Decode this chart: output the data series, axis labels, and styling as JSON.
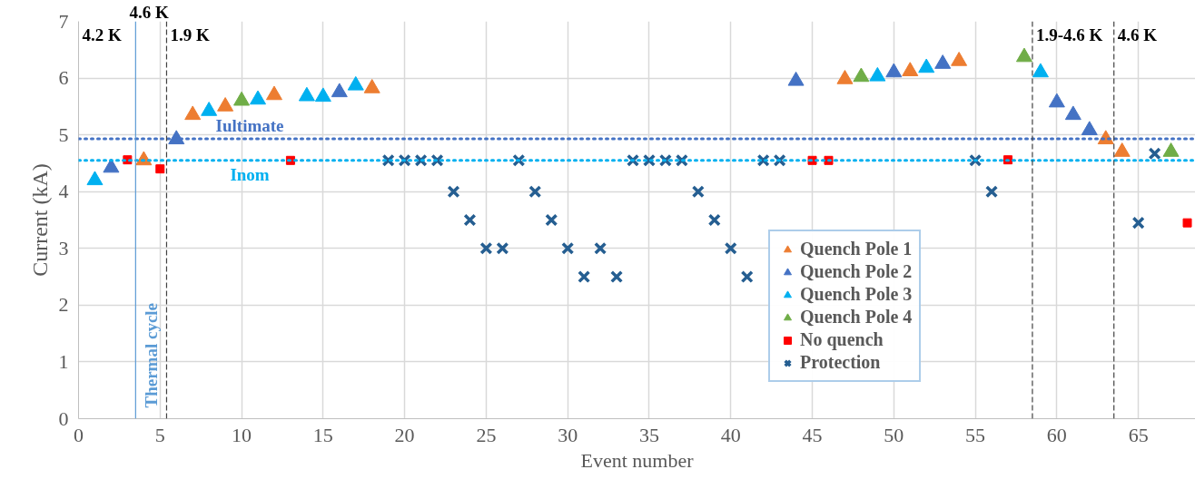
{
  "chart_data": {
    "type": "scatter",
    "xlabel": "Event number",
    "ylabel": "Current (kA)",
    "xlim": [
      0,
      68.5
    ],
    "ylim": [
      0,
      7
    ],
    "xticks": [
      0,
      5,
      10,
      15,
      20,
      25,
      30,
      35,
      40,
      45,
      50,
      55,
      60,
      65
    ],
    "yticks": [
      0,
      1,
      2,
      3,
      4,
      5,
      6,
      7
    ],
    "grid": true,
    "legend": "bottom right",
    "series": [
      {
        "name": "Quench Pole 1",
        "color": "#ed7d31",
        "marker": "triangle",
        "x": [
          4,
          7,
          9,
          12,
          18,
          47,
          51,
          54,
          63,
          64
        ],
        "values": [
          4.55,
          5.35,
          5.5,
          5.7,
          5.82,
          5.98,
          6.12,
          6.3,
          4.92,
          4.7
        ]
      },
      {
        "name": "Quench Pole 2",
        "color": "#4472c4",
        "marker": "triangle",
        "x": [
          2,
          6,
          16,
          44,
          50,
          53,
          60,
          61,
          62
        ],
        "values": [
          4.42,
          4.92,
          5.75,
          5.95,
          6.1,
          6.25,
          5.57,
          5.35,
          5.08
        ]
      },
      {
        "name": "Quench Pole 3",
        "color": "#00b0f0",
        "marker": "triangle",
        "x": [
          1,
          8,
          11,
          14,
          15,
          17,
          49,
          52,
          59
        ],
        "values": [
          4.2,
          5.42,
          5.62,
          5.68,
          5.67,
          5.87,
          6.03,
          6.18,
          6.1
        ]
      },
      {
        "name": "Quench Pole 4",
        "color": "#70ad47",
        "marker": "triangle",
        "x": [
          10,
          48,
          58,
          67
        ],
        "values": [
          5.6,
          6.02,
          6.37,
          4.7
        ]
      },
      {
        "name": "No quench",
        "color": "#ff0000",
        "marker": "square",
        "x": [
          3,
          5,
          13,
          45,
          46,
          57,
          68
        ],
        "values": [
          4.56,
          4.4,
          4.55,
          4.55,
          4.55,
          4.56,
          3.45
        ]
      },
      {
        "name": "Protection",
        "color": "#255e91",
        "marker": "cross",
        "x": [
          19,
          20,
          21,
          22,
          23,
          24,
          25,
          26,
          27,
          28,
          29,
          30,
          31,
          32,
          33,
          34,
          35,
          36,
          37,
          38,
          39,
          40,
          41,
          42,
          43,
          55,
          56,
          65,
          66
        ],
        "values": [
          4.55,
          4.55,
          4.55,
          4.55,
          4.0,
          3.5,
          3.0,
          3.0,
          4.55,
          4.0,
          3.5,
          3.0,
          2.5,
          3.0,
          2.5,
          4.55,
          4.55,
          4.55,
          4.55,
          4.0,
          3.5,
          3.0,
          2.5,
          4.55,
          4.55,
          4.55,
          4.0,
          3.45,
          4.67
        ]
      }
    ],
    "ref_lines": [
      {
        "axis": "y",
        "value": 4.93,
        "label": "Iultimate",
        "color": "#4472c4",
        "line_style": "dotted"
      },
      {
        "axis": "y",
        "value": 4.55,
        "label": "Inom",
        "color": "#00b0f0",
        "line_style": "dotted"
      },
      {
        "axis": "x",
        "value": 3.5,
        "label": "Thermal cycle",
        "color": "#5b9bd5",
        "line_style": "solid"
      },
      {
        "axis": "x",
        "value": 5.4,
        "label": null,
        "color": "#404040",
        "line_style": "dashed"
      },
      {
        "axis": "x",
        "value": 58.5,
        "label": null,
        "color": "#404040",
        "line_style": "dashed"
      },
      {
        "axis": "x",
        "value": 63.5,
        "label": null,
        "color": "#404040",
        "line_style": "dashed"
      }
    ],
    "annotations": [
      "4.2 K",
      "4.6 K",
      "1.9 K",
      "1.9-4.6 K",
      "4.6 K"
    ]
  }
}
